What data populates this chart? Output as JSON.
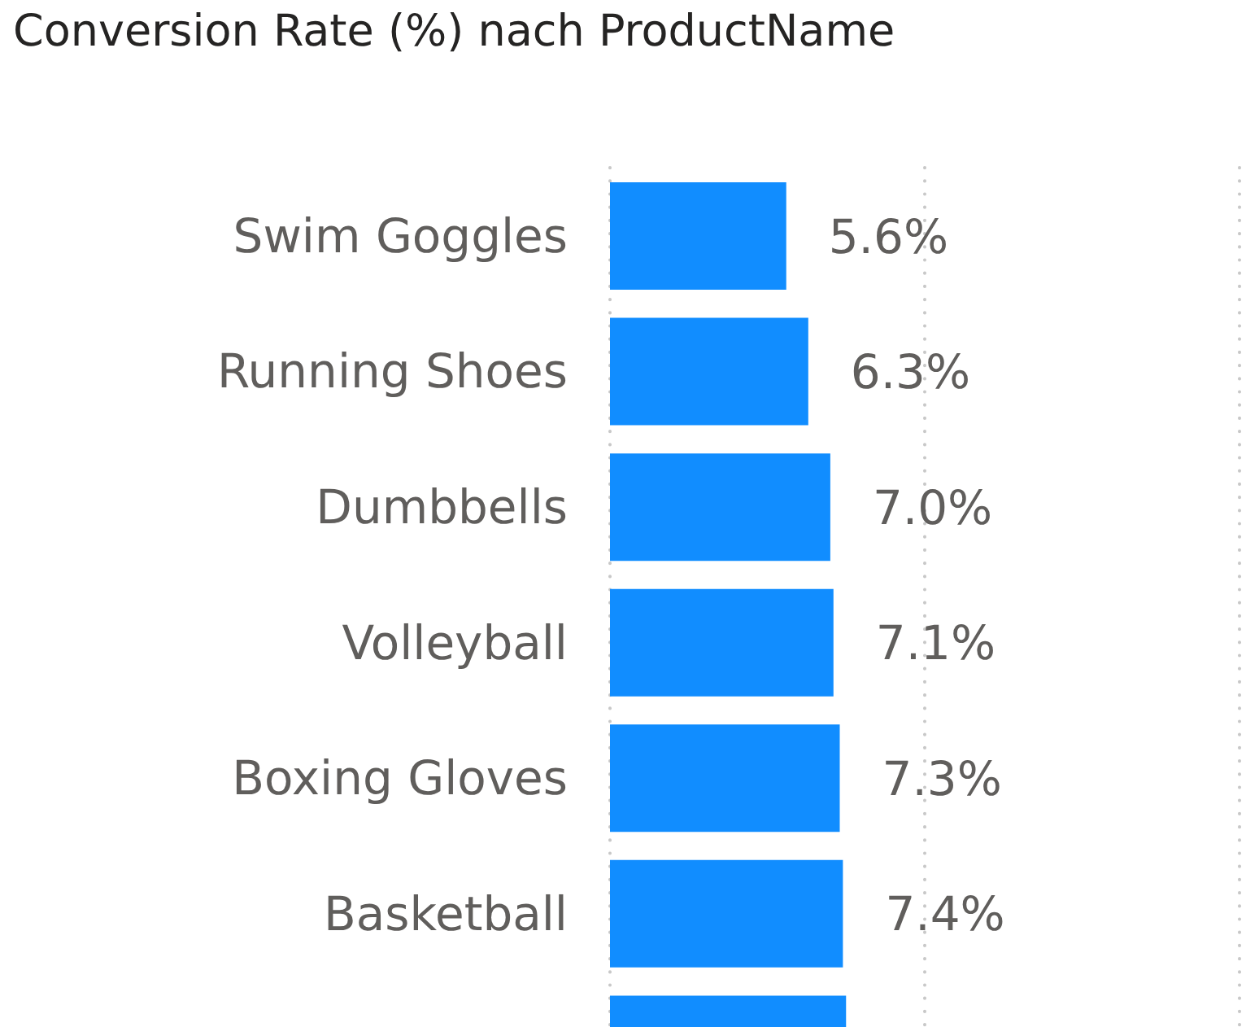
{
  "chart_data": {
    "type": "bar",
    "orientation": "horizontal",
    "title": "Conversion Rate (%) nach ProductName",
    "categories": [
      "Swim Goggles",
      "Running Shoes",
      "Dumbbells",
      "Volleyball",
      "Boxing Gloves",
      "Basketball",
      null
    ],
    "values": [
      5.6,
      6.3,
      7.0,
      7.1,
      7.3,
      7.4,
      7.5
    ],
    "value_labels": [
      "5.6%",
      "6.3%",
      "7.0%",
      "7.1%",
      "7.3%",
      "7.4%",
      null
    ],
    "color": "#118dff",
    "xlim": [
      0,
      20
    ],
    "xticks": [
      {
        "value": 0,
        "label": null
      },
      {
        "value": 10,
        "label": null
      },
      {
        "value": 20,
        "label": null
      }
    ],
    "grid": "x",
    "tick_labels": "y"
  }
}
